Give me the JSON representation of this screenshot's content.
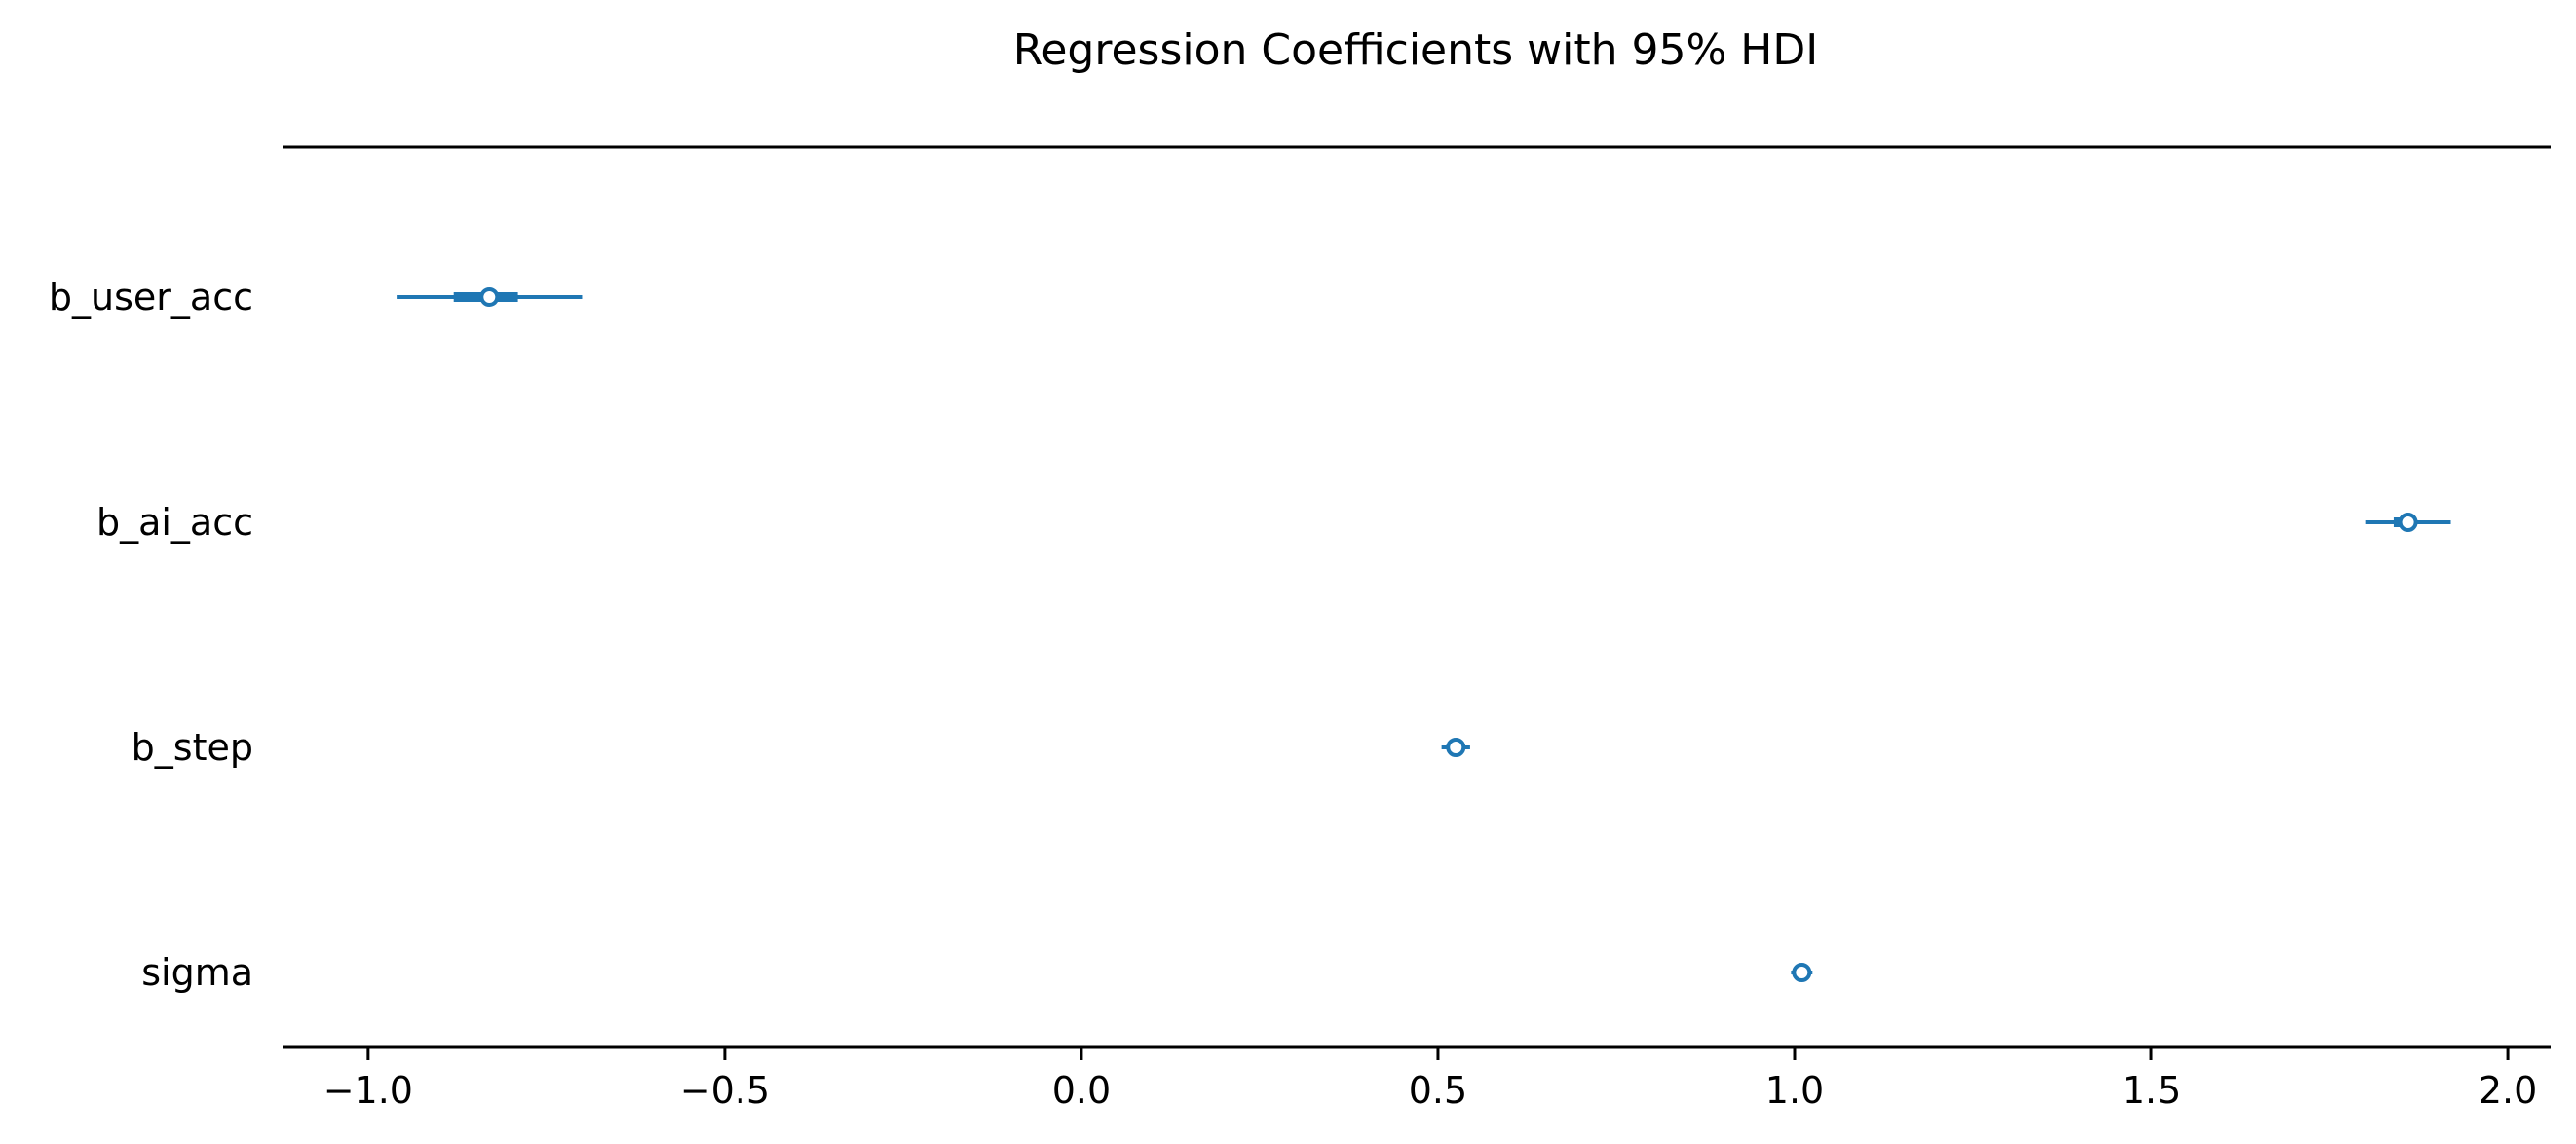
{
  "chart_data": {
    "type": "forest",
    "title": "Regression Coefficients with 95% HDI",
    "xlabel": "",
    "ylabel": "",
    "xlim": [
      -1.12,
      2.06
    ],
    "xticks": [
      -1.0,
      -0.5,
      0.0,
      0.5,
      1.0,
      1.5,
      2.0
    ],
    "xtick_labels": [
      "−1.0",
      "−0.5",
      "0.0",
      "0.5",
      "1.0",
      "1.5",
      "2.0"
    ],
    "grid": false,
    "color": "#1f77b4",
    "rows": [
      {
        "name": "b_user_acc",
        "mean": -0.83,
        "hdi95": [
          -0.96,
          -0.7
        ],
        "iqr": [
          -0.88,
          -0.79
        ]
      },
      {
        "name": "b_ai_acc",
        "mean": 1.86,
        "hdi95": [
          1.8,
          1.92
        ],
        "iqr": [
          1.84,
          1.87
        ]
      },
      {
        "name": "b_step",
        "mean": 0.525,
        "hdi95": [
          0.505,
          0.545
        ],
        "iqr": [
          0.515,
          0.535
        ]
      },
      {
        "name": "sigma",
        "mean": 1.01,
        "hdi95": [
          0.995,
          1.025
        ],
        "iqr": [
          1.003,
          1.017
        ]
      }
    ]
  }
}
